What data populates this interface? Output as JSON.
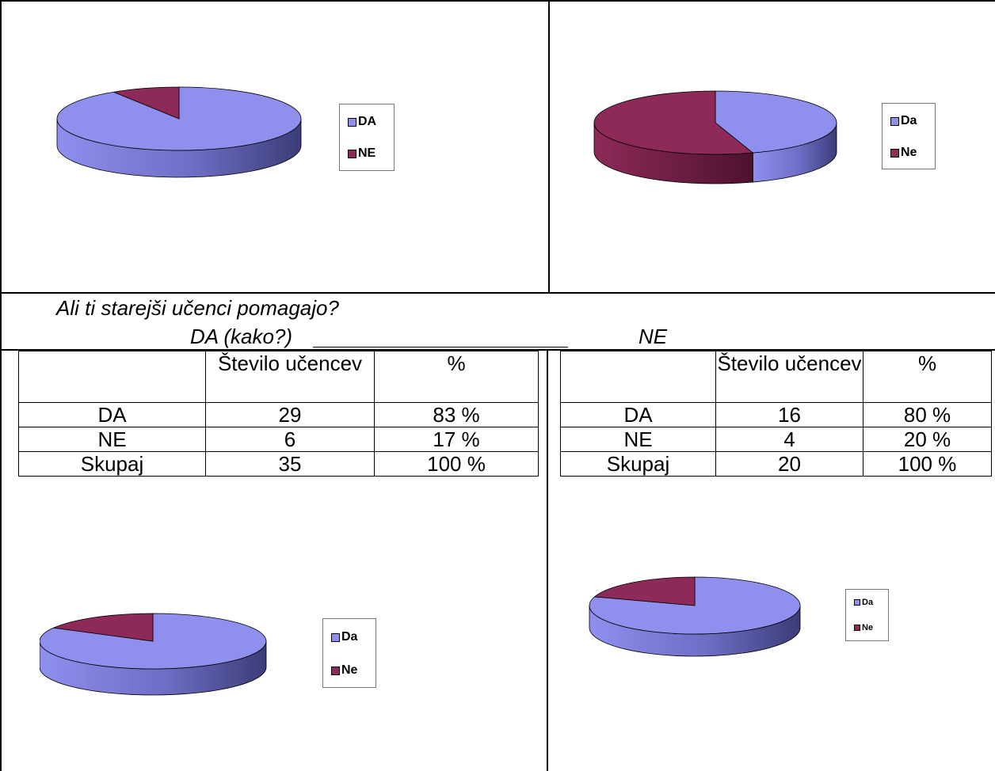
{
  "question": {
    "text": "Ali ti starejši učenci pomagajo?",
    "answer_yes": "DA (kako?)",
    "answer_no": "NE"
  },
  "tables": [
    {
      "headers": [
        "",
        "Število učencev",
        "%"
      ],
      "rows": [
        [
          "DA",
          "29",
          "83 %"
        ],
        [
          "NE",
          "6",
          "17 %"
        ],
        [
          "Skupaj",
          "35",
          "100 %"
        ]
      ]
    },
    {
      "headers": [
        "",
        "Število učencev",
        "%"
      ],
      "rows": [
        [
          "DA",
          "16",
          "80 %"
        ],
        [
          "NE",
          "4",
          "20 %"
        ],
        [
          "Skupaj",
          "20",
          "100 %"
        ]
      ]
    }
  ],
  "colors": {
    "yes": "#8f8fee",
    "yes_dark": "#3c3c78",
    "no": "#8e2a58",
    "no_dark": "#4e1230"
  },
  "chart_data": [
    {
      "type": "pie",
      "categories": [
        "DA",
        "NE"
      ],
      "values": [
        91,
        9
      ],
      "legend_position": "right"
    },
    {
      "type": "pie",
      "categories": [
        "Da",
        "Ne"
      ],
      "values": [
        45,
        55
      ],
      "legend_position": "right"
    },
    {
      "type": "pie",
      "categories": [
        "Da",
        "Ne"
      ],
      "values": [
        83,
        17
      ],
      "legend_position": "right"
    },
    {
      "type": "pie",
      "categories": [
        "Da",
        "Ne"
      ],
      "values": [
        80,
        20
      ],
      "legend_position": "right"
    }
  ]
}
